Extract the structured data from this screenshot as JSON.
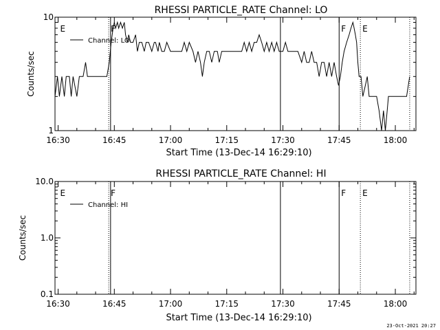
{
  "chart_data": [
    {
      "type": "line",
      "title": "RHESSI PARTICLE_RATE Channel: LO",
      "xlabel": "Start Time (13-Dec-14 16:29:10)",
      "ylabel": "Counts/sec",
      "yscale": "log",
      "ylim": [
        1,
        10
      ],
      "xlim": [
        "16:29:10",
        "18:05:30"
      ],
      "x_ticks": [
        "16:30",
        "16:45",
        "17:00",
        "17:15",
        "17:30",
        "17:45",
        "18:00"
      ],
      "y_ticks": [
        "1",
        "10"
      ],
      "legend": {
        "position": "top-left",
        "entries": [
          "Channel: LO"
        ]
      },
      "markers": [
        {
          "time": "16:30",
          "label": "E",
          "style": "none"
        },
        {
          "time": "16:43:30",
          "label": "F",
          "style": "dotted"
        },
        {
          "time": "16:44",
          "label": "",
          "style": "solid"
        },
        {
          "time": "17:29:20",
          "label": "",
          "style": "solid"
        },
        {
          "time": "17:45",
          "label": "F",
          "style": "solid"
        },
        {
          "time": "17:50:40",
          "label": "E",
          "style": "dotted"
        },
        {
          "time": "18:03:50",
          "label": "",
          "style": "dotted"
        }
      ],
      "series": [
        {
          "name": "Channel: LO",
          "points": [
            [
              "16:29:10",
              2
            ],
            [
              "16:29:50",
              3
            ],
            [
              "16:30:20",
              2
            ],
            [
              "16:31:00",
              3
            ],
            [
              "16:31:40",
              2
            ],
            [
              "16:32:10",
              3
            ],
            [
              "16:33:00",
              3
            ],
            [
              "16:33:30",
              2
            ],
            [
              "16:34:00",
              3
            ],
            [
              "16:35:00",
              2
            ],
            [
              "16:35:40",
              3
            ],
            [
              "16:36:40",
              3
            ],
            [
              "16:37:20",
              4
            ],
            [
              "16:37:50",
              3
            ],
            [
              "16:38:20",
              3
            ],
            [
              "16:39:00",
              3
            ],
            [
              "16:42:00",
              3
            ],
            [
              "16:43:00",
              3
            ],
            [
              "16:43:40",
              4
            ],
            [
              "16:44:10",
              6
            ],
            [
              "16:44:40",
              8
            ],
            [
              "16:45:00",
              9
            ],
            [
              "16:45:20",
              8
            ],
            [
              "16:45:50",
              9
            ],
            [
              "16:46:10",
              8
            ],
            [
              "16:46:40",
              9
            ],
            [
              "16:47:10",
              8
            ],
            [
              "16:47:40",
              9
            ],
            [
              "16:48:00",
              7
            ],
            [
              "16:48:30",
              6
            ],
            [
              "16:48:50",
              7
            ],
            [
              "16:49:20",
              6
            ],
            [
              "16:50:00",
              6
            ],
            [
              "16:50:40",
              7
            ],
            [
              "16:51:10",
              5
            ],
            [
              "16:51:40",
              6
            ],
            [
              "16:52:20",
              6
            ],
            [
              "16:53:00",
              5
            ],
            [
              "16:53:30",
              6
            ],
            [
              "16:54:10",
              6
            ],
            [
              "16:55:00",
              5
            ],
            [
              "16:55:40",
              6
            ],
            [
              "16:56:00",
              6
            ],
            [
              "16:56:40",
              5
            ],
            [
              "16:57:00",
              6
            ],
            [
              "16:57:40",
              5
            ],
            [
              "16:58:20",
              5
            ],
            [
              "16:59:00",
              6
            ],
            [
              "17:00:00",
              5
            ],
            [
              "17:01:00",
              5
            ],
            [
              "17:02:00",
              5
            ],
            [
              "17:03:00",
              5
            ],
            [
              "17:03:40",
              6
            ],
            [
              "17:04:20",
              5
            ],
            [
              "17:05:00",
              6
            ],
            [
              "17:06:00",
              5
            ],
            [
              "17:06:40",
              4
            ],
            [
              "17:07:20",
              5
            ],
            [
              "17:08:00",
              4
            ],
            [
              "17:08:30",
              3
            ],
            [
              "17:09:00",
              4
            ],
            [
              "17:09:40",
              5
            ],
            [
              "17:10:20",
              5
            ],
            [
              "17:11:00",
              4
            ],
            [
              "17:11:40",
              5
            ],
            [
              "17:12:30",
              5
            ],
            [
              "17:13:00",
              4
            ],
            [
              "17:13:40",
              5
            ],
            [
              "17:14:30",
              5
            ],
            [
              "17:15:00",
              5
            ],
            [
              "17:16:00",
              5
            ],
            [
              "17:17:00",
              5
            ],
            [
              "17:18:00",
              5
            ],
            [
              "17:19:00",
              5
            ],
            [
              "17:19:40",
              6
            ],
            [
              "17:20:20",
              5
            ],
            [
              "17:21:00",
              6
            ],
            [
              "17:21:40",
              5
            ],
            [
              "17:22:20",
              6
            ],
            [
              "17:23:00",
              6
            ],
            [
              "17:23:40",
              7
            ],
            [
              "17:24:20",
              6
            ],
            [
              "17:25:00",
              5
            ],
            [
              "17:25:40",
              6
            ],
            [
              "17:26:20",
              5
            ],
            [
              "17:27:00",
              6
            ],
            [
              "17:27:40",
              5
            ],
            [
              "17:28:20",
              6
            ],
            [
              "17:29:00",
              5
            ],
            [
              "17:30:00",
              5
            ],
            [
              "17:30:40",
              6
            ],
            [
              "17:31:20",
              5
            ],
            [
              "17:32:00",
              5
            ],
            [
              "17:33:00",
              5
            ],
            [
              "17:34:00",
              5
            ],
            [
              "17:35:00",
              4
            ],
            [
              "17:35:40",
              5
            ],
            [
              "17:36:20",
              4
            ],
            [
              "17:37:00",
              4
            ],
            [
              "17:37:40",
              5
            ],
            [
              "17:38:20",
              4
            ],
            [
              "17:39:00",
              4
            ],
            [
              "17:39:40",
              3
            ],
            [
              "17:40:20",
              4
            ],
            [
              "17:41:00",
              4
            ],
            [
              "17:41:40",
              3
            ],
            [
              "17:42:20",
              4
            ],
            [
              "17:43:00",
              3
            ],
            [
              "17:43:40",
              4
            ],
            [
              "17:44:20",
              3
            ],
            [
              "17:44:50",
              2.5
            ],
            [
              "17:45:20",
              3
            ],
            [
              "17:45:50",
              4
            ],
            [
              "17:46:20",
              5
            ],
            [
              "17:47:00",
              6
            ],
            [
              "17:47:40",
              7
            ],
            [
              "17:48:10",
              8
            ],
            [
              "17:48:40",
              9
            ],
            [
              "17:49:00",
              8
            ],
            [
              "17:49:20",
              7
            ],
            [
              "17:49:40",
              6
            ],
            [
              "17:50:00",
              4
            ],
            [
              "17:50:20",
              3
            ],
            [
              "17:50:50",
              3
            ],
            [
              "17:51:20",
              2
            ],
            [
              "17:52:00",
              2.5
            ],
            [
              "17:52:30",
              3
            ],
            [
              "17:53:00",
              2
            ],
            [
              "17:53:40",
              2
            ],
            [
              "17:54:20",
              2
            ],
            [
              "17:55:00",
              2
            ],
            [
              "17:55:40",
              1.5
            ],
            [
              "17:56:20",
              1
            ],
            [
              "17:56:50",
              1.5
            ],
            [
              "17:57:20",
              1
            ],
            [
              "17:57:50",
              1.5
            ],
            [
              "17:58:10",
              2
            ],
            [
              "17:59:00",
              2
            ],
            [
              "18:00:00",
              2
            ],
            [
              "18:01:00",
              2
            ],
            [
              "18:02:00",
              2
            ],
            [
              "18:03:00",
              2
            ],
            [
              "18:03:50",
              3
            ]
          ]
        }
      ]
    },
    {
      "type": "line",
      "title": "RHESSI PARTICLE_RATE Channel: HI",
      "xlabel": "Start Time (13-Dec-14 16:29:10)",
      "ylabel": "Counts/sec",
      "yscale": "log",
      "ylim": [
        0.1,
        10
      ],
      "xlim": [
        "16:29:10",
        "18:05:30"
      ],
      "x_ticks": [
        "16:30",
        "16:45",
        "17:00",
        "17:15",
        "17:30",
        "17:45",
        "18:00"
      ],
      "y_ticks": [
        "0.1",
        "1.0",
        "10.0"
      ],
      "legend": {
        "position": "top-left",
        "entries": [
          "Channel: HI"
        ]
      },
      "markers": [
        {
          "time": "16:30",
          "label": "E",
          "style": "none"
        },
        {
          "time": "16:43:30",
          "label": "F",
          "style": "dotted"
        },
        {
          "time": "16:44",
          "label": "",
          "style": "solid"
        },
        {
          "time": "17:29:20",
          "label": "",
          "style": "solid"
        },
        {
          "time": "17:45",
          "label": "F",
          "style": "solid"
        },
        {
          "time": "17:50:40",
          "label": "E",
          "style": "dotted"
        },
        {
          "time": "18:03:50",
          "label": "",
          "style": "dotted"
        }
      ],
      "series": [
        {
          "name": "Channel: HI",
          "points": []
        }
      ]
    }
  ],
  "footer": {
    "timestamp": "23-Oct-2021 20:27"
  }
}
